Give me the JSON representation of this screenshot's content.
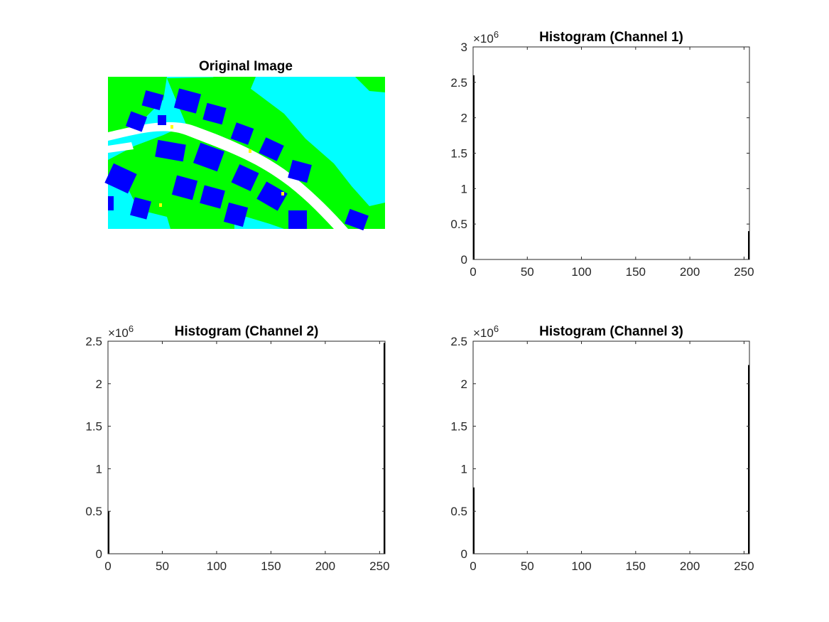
{
  "figure": {
    "image_panel": {
      "title": "Original Image"
    },
    "colors": {
      "water": "#00ffff",
      "vegetation": "#00ff00",
      "building": "#0000ff",
      "road": "#ffffff",
      "car": "#ffff00",
      "bar": "#000000",
      "axis": "#262626"
    }
  },
  "chart_data": [
    {
      "type": "bar",
      "title": "Histogram (Channel 1)",
      "xlabel": "",
      "ylabel": "",
      "xlim": [
        0,
        255
      ],
      "ylim": [
        0,
        3
      ],
      "y_exponent_label": "×10^6",
      "y_multiplier": 1000000,
      "x_ticks": [
        0,
        50,
        100,
        150,
        200,
        250
      ],
      "y_ticks": [
        0,
        0.5,
        1,
        1.5,
        2,
        2.5,
        3
      ],
      "y_tick_labels": [
        "0",
        "0.5",
        "1",
        "1.5",
        "2",
        "2.5",
        "3"
      ],
      "bars": [
        {
          "x": 0,
          "value": 2.6
        },
        {
          "x": 255,
          "value": 0.4
        }
      ],
      "grid": false
    },
    {
      "type": "bar",
      "title": "Histogram (Channel 2)",
      "xlabel": "",
      "ylabel": "",
      "xlim": [
        0,
        255
      ],
      "ylim": [
        0,
        2.5
      ],
      "y_exponent_label": "×10^6",
      "y_multiplier": 1000000,
      "x_ticks": [
        0,
        50,
        100,
        150,
        200,
        250
      ],
      "y_ticks": [
        0,
        0.5,
        1,
        1.5,
        2,
        2.5
      ],
      "y_tick_labels": [
        "0",
        "0.5",
        "1",
        "1.5",
        "2",
        "2.5"
      ],
      "bars": [
        {
          "x": 0,
          "value": 0.5
        },
        {
          "x": 255,
          "value": 2.48
        }
      ],
      "grid": false
    },
    {
      "type": "bar",
      "title": "Histogram (Channel 3)",
      "xlabel": "",
      "ylabel": "",
      "xlim": [
        0,
        255
      ],
      "ylim": [
        0,
        2.5
      ],
      "y_exponent_label": "×10^6",
      "y_multiplier": 1000000,
      "x_ticks": [
        0,
        50,
        100,
        150,
        200,
        250
      ],
      "y_ticks": [
        0,
        0.5,
        1,
        1.5,
        2,
        2.5
      ],
      "y_tick_labels": [
        "0",
        "0.5",
        "1",
        "1.5",
        "2",
        "2.5"
      ],
      "bars": [
        {
          "x": 0,
          "value": 0.78
        },
        {
          "x": 255,
          "value": 2.22
        }
      ],
      "grid": false
    }
  ]
}
